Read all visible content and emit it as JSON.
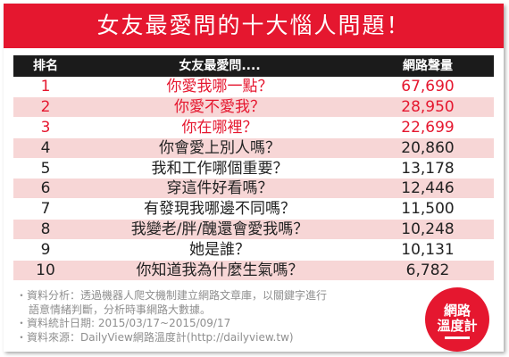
{
  "title": "女友最愛問的十大惱人問題！",
  "table": {
    "headers": {
      "rank": "排名",
      "question": "女友最愛問....",
      "volume": "網路聲量"
    },
    "rows": [
      {
        "rank": "1",
        "question": "你愛我哪一點？",
        "volume": "67,690"
      },
      {
        "rank": "2",
        "question": "你愛不愛我？",
        "volume": "28,950"
      },
      {
        "rank": "3",
        "question": "你在哪裡？",
        "volume": "22,699"
      },
      {
        "rank": "4",
        "question": "你會愛上別人嗎？",
        "volume": "20,860"
      },
      {
        "rank": "5",
        "question": "我和工作哪個重要？",
        "volume": "13,178"
      },
      {
        "rank": "6",
        "question": "穿這件好看嗎？",
        "volume": "12,446"
      },
      {
        "rank": "7",
        "question": "有發現我哪邊不同嗎？",
        "volume": "11,500"
      },
      {
        "rank": "8",
        "question": "我變老/胖/醜還會愛我嗎？",
        "volume": "10,248"
      },
      {
        "rank": "9",
        "question": "她是誰？",
        "volume": "10,131"
      },
      {
        "rank": "10",
        "question": "你知道我為什麼生氣嗎？",
        "volume": "6,782"
      }
    ]
  },
  "notes": {
    "analysis_1": "・資料分析：透過機器人爬文機制建立網路文章庫，以關鍵字進行",
    "analysis_2": "語意情緒判斷，分析時事網路大數據。",
    "date": "・資料統計日期: 2015/03/17~2015/09/17",
    "source": "・資料來源：DailyView網路溫度計(http://dailyview.tw)"
  },
  "logo": {
    "line1": "網路",
    "line2": "溫度計"
  },
  "colors": {
    "accent": "#e5172f",
    "header": "#1b1b1b",
    "alt_row": "#f7d6d6",
    "note_text": "#8f8f8f"
  }
}
